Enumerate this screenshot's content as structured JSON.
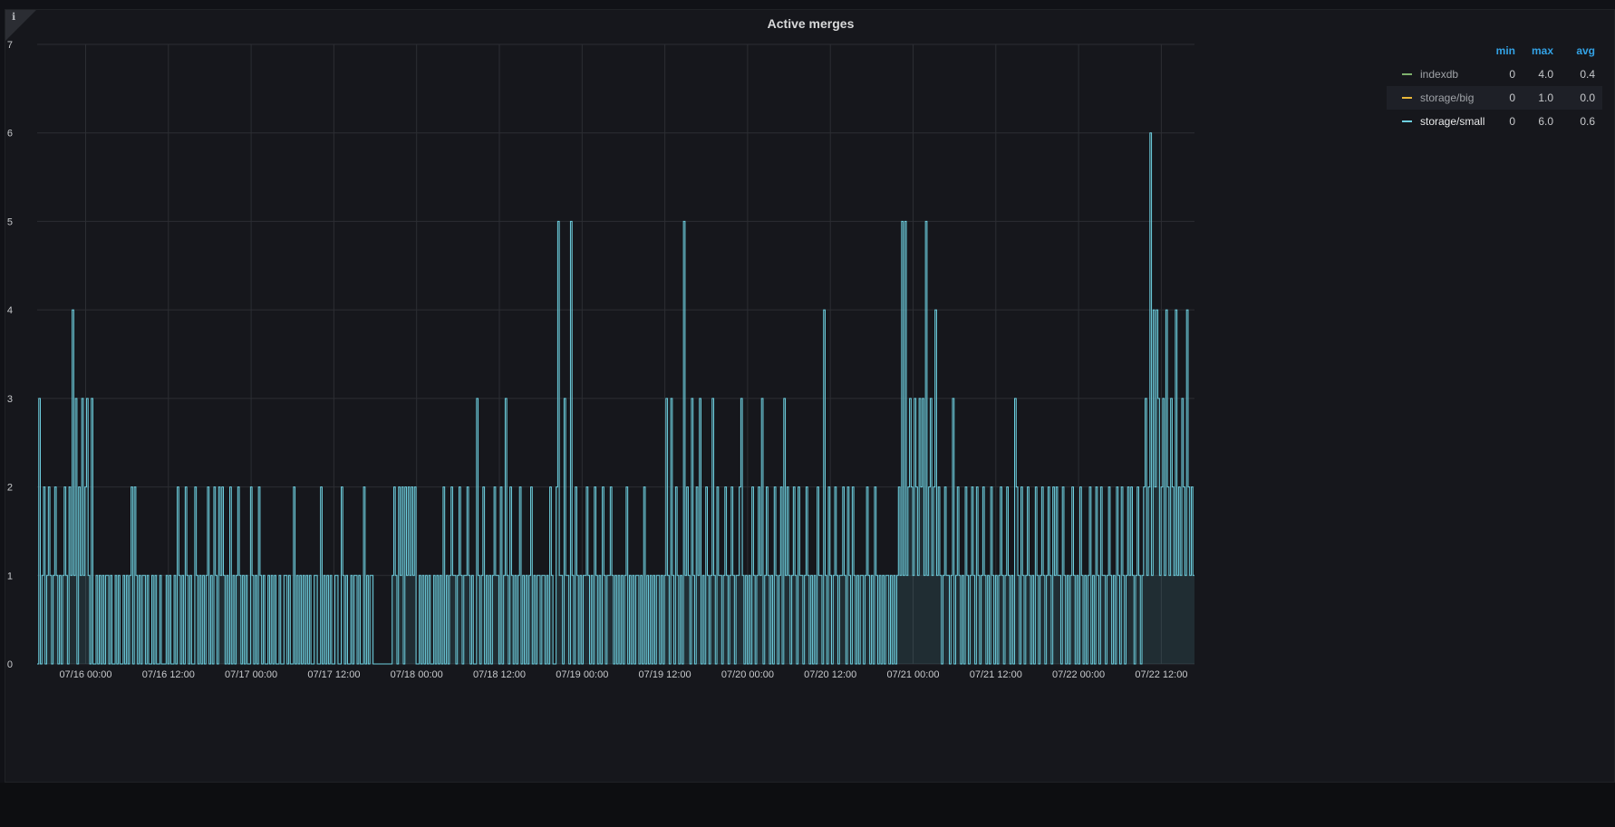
{
  "panel": {
    "title": "Active merges",
    "info_icon": "info-icon"
  },
  "legend": {
    "headers": {
      "min": "min",
      "max": "max",
      "avg": "avg"
    },
    "series": [
      {
        "name": "indexdb",
        "color": "#7eb26d",
        "min": "0",
        "max": "4.0",
        "avg": "0.4"
      },
      {
        "name": "storage/big",
        "color": "#eab839",
        "min": "0",
        "max": "1.0",
        "avg": "0.0"
      },
      {
        "name": "storage/small",
        "color": "#6ed0e0",
        "min": "0",
        "max": "6.0",
        "avg": "0.6"
      }
    ]
  },
  "chart_data": {
    "type": "line",
    "title": "Active merges",
    "xlabel": "",
    "ylabel": "",
    "ylim": [
      0,
      7
    ],
    "yticks": [
      "0",
      "1",
      "2",
      "3",
      "4",
      "5",
      "6",
      "7"
    ],
    "xticks": [
      "07/16 00:00",
      "07/16 12:00",
      "07/17 00:00",
      "07/17 12:00",
      "07/18 00:00",
      "07/18 12:00",
      "07/19 00:00",
      "07/19 12:00",
      "07/20 00:00",
      "07/20 12:00",
      "07/21 00:00",
      "07/21 12:00",
      "07/22 00:00",
      "07/22 12:00"
    ],
    "x_range": [
      "07/15 19:15",
      "07/22 17:15"
    ],
    "grid": true,
    "legend_position": "right",
    "series": [
      {
        "name": "storage/small",
        "color": "#6ed0e0",
        "sample_interval_minutes": 5,
        "values": [
          0,
          3,
          0,
          1,
          2,
          0,
          1,
          2,
          1,
          0,
          1,
          2,
          1,
          0,
          1,
          0,
          1,
          2,
          1,
          0,
          2,
          1,
          4,
          1,
          3,
          0,
          2,
          1,
          3,
          1,
          2,
          3,
          1,
          0,
          3,
          0,
          0,
          1,
          0,
          1,
          0,
          1,
          0,
          1,
          1,
          0,
          1,
          0,
          0,
          1,
          0,
          1,
          0,
          0,
          1,
          0,
          1,
          0,
          1,
          2,
          0,
          2,
          1,
          0,
          1,
          0,
          1,
          1,
          0,
          1,
          0,
          0,
          1,
          0,
          1,
          0,
          0,
          1,
          0,
          0,
          0,
          1,
          0,
          1,
          0,
          0,
          1,
          0,
          2,
          1,
          0,
          1,
          0,
          2,
          1,
          0,
          1,
          0,
          0,
          2,
          1,
          0,
          1,
          0,
          1,
          0,
          1,
          2,
          0,
          1,
          0,
          2,
          1,
          0,
          2,
          1,
          2,
          1,
          0,
          1,
          0,
          2,
          0,
          1,
          0,
          1,
          2,
          1,
          0,
          1,
          0,
          1,
          0,
          0,
          2,
          1,
          0,
          1,
          0,
          2,
          1,
          0,
          1,
          0,
          0,
          1,
          0,
          1,
          0,
          1,
          0,
          0,
          1,
          0,
          0,
          1,
          1,
          0,
          1,
          0,
          0,
          2,
          0,
          1,
          0,
          1,
          0,
          1,
          0,
          1,
          0,
          1,
          0,
          0,
          1,
          1,
          0,
          0,
          2,
          0,
          1,
          0,
          1,
          0,
          1,
          0,
          0,
          1,
          1,
          0,
          0,
          2,
          1,
          0,
          1,
          0,
          0,
          1,
          0,
          1,
          1,
          0,
          1,
          0,
          0,
          2,
          0,
          1,
          0,
          1,
          1,
          0,
          0,
          0,
          0,
          0,
          0,
          0,
          0,
          0,
          0,
          0,
          0,
          1,
          2,
          1,
          0,
          2,
          1,
          2,
          0,
          2,
          1,
          2,
          1,
          2,
          1,
          2,
          0,
          0,
          1,
          0,
          1,
          0,
          1,
          0,
          1,
          0,
          0,
          1,
          0,
          1,
          0,
          1,
          0,
          2,
          0,
          1,
          0,
          1,
          2,
          1,
          1,
          0,
          1,
          2,
          1,
          0,
          1,
          1,
          2,
          1,
          0,
          1,
          0,
          0,
          3,
          1,
          0,
          1,
          2,
          0,
          1,
          0,
          1,
          0,
          1,
          2,
          1,
          1,
          0,
          2,
          0,
          1,
          3,
          1,
          0,
          2,
          1,
          0,
          1,
          0,
          1,
          2,
          0,
          1,
          0,
          1,
          0,
          1,
          2,
          0,
          1,
          0,
          1,
          1,
          0,
          1,
          1,
          0,
          1,
          0,
          2,
          1,
          0,
          0,
          2,
          5,
          1,
          1,
          0,
          3,
          1,
          1,
          0,
          5,
          1,
          0,
          2,
          1,
          0,
          1,
          0,
          1,
          1,
          2,
          1,
          0,
          1,
          0,
          2,
          1,
          0,
          1,
          0,
          2,
          1,
          0,
          1,
          1,
          2,
          1,
          0,
          1,
          0,
          1,
          0,
          1,
          0,
          1,
          2,
          0,
          1,
          0,
          1,
          0,
          1,
          1,
          0,
          1,
          0,
          2,
          0,
          1,
          0,
          1,
          0,
          1,
          0,
          1,
          1,
          0,
          1,
          0,
          1,
          3,
          1,
          0,
          3,
          1,
          0,
          2,
          1,
          0,
          1,
          0,
          5,
          1,
          2,
          1,
          0,
          3,
          1,
          0,
          2,
          1,
          3,
          0,
          1,
          0,
          2,
          1,
          0,
          1,
          3,
          1,
          0,
          2,
          1,
          1,
          0,
          1,
          2,
          1,
          0,
          1,
          2,
          1,
          0,
          1,
          1,
          2,
          3,
          1,
          0,
          1,
          0,
          1,
          0,
          2,
          1,
          0,
          1,
          2,
          1,
          3,
          0,
          1,
          2,
          1,
          0,
          1,
          0,
          2,
          1,
          0,
          1,
          2,
          0,
          3,
          1,
          2,
          1,
          0,
          1,
          2,
          1,
          0,
          2,
          1,
          1,
          0,
          1,
          2,
          1,
          0,
          1,
          0,
          1,
          0,
          2,
          1,
          1,
          0,
          4,
          1,
          0,
          2,
          1,
          0,
          1,
          2,
          1,
          0,
          1,
          1,
          2,
          1,
          0,
          2,
          1,
          0,
          2,
          1,
          0,
          1,
          0,
          1,
          1,
          0,
          1,
          2,
          1,
          0,
          1,
          0,
          2,
          1,
          0,
          1,
          0,
          1,
          0,
          1,
          1,
          0,
          1,
          0,
          1,
          0,
          1,
          2,
          1,
          5,
          1,
          5,
          1,
          2,
          3,
          2,
          1,
          3,
          2,
          1,
          3,
          2,
          3,
          1,
          5,
          1,
          2,
          3,
          1,
          2,
          4,
          1,
          2,
          1,
          0,
          1,
          2,
          1,
          1,
          0,
          1,
          3,
          0,
          1,
          2,
          1,
          0,
          1,
          0,
          2,
          1,
          0,
          1,
          2,
          1,
          0,
          2,
          1,
          0,
          1,
          2,
          1,
          0,
          1,
          0,
          2,
          1,
          0,
          1,
          0,
          1,
          2,
          1,
          0,
          1,
          2,
          1,
          0,
          1,
          0,
          3,
          2,
          1,
          0,
          2,
          1,
          0,
          1,
          2,
          1,
          0,
          1,
          0,
          2,
          1,
          0,
          1,
          2,
          1,
          0,
          1,
          2,
          1,
          0,
          2,
          1,
          2,
          1,
          1,
          0,
          2,
          1,
          0,
          1,
          0,
          1,
          2,
          1,
          0,
          1,
          0,
          2,
          1,
          0,
          1,
          0,
          1,
          2,
          0,
          1,
          0,
          2,
          1,
          0,
          2,
          1,
          1,
          0,
          1,
          2,
          1,
          0,
          1,
          0,
          2,
          1,
          0,
          2,
          1,
          0,
          1,
          2,
          1,
          2,
          1,
          0,
          1,
          2,
          1,
          0,
          1,
          2,
          3,
          1,
          2,
          6,
          1,
          4,
          2,
          4,
          3,
          1,
          2,
          3,
          1,
          4,
          2,
          1,
          3,
          2,
          1,
          4,
          1,
          2,
          1,
          3,
          2,
          1,
          4,
          2,
          1,
          2,
          1
        ]
      },
      {
        "name": "indexdb",
        "color": "#7eb26d",
        "values": []
      },
      {
        "name": "storage/big",
        "color": "#eab839",
        "values": []
      }
    ]
  }
}
